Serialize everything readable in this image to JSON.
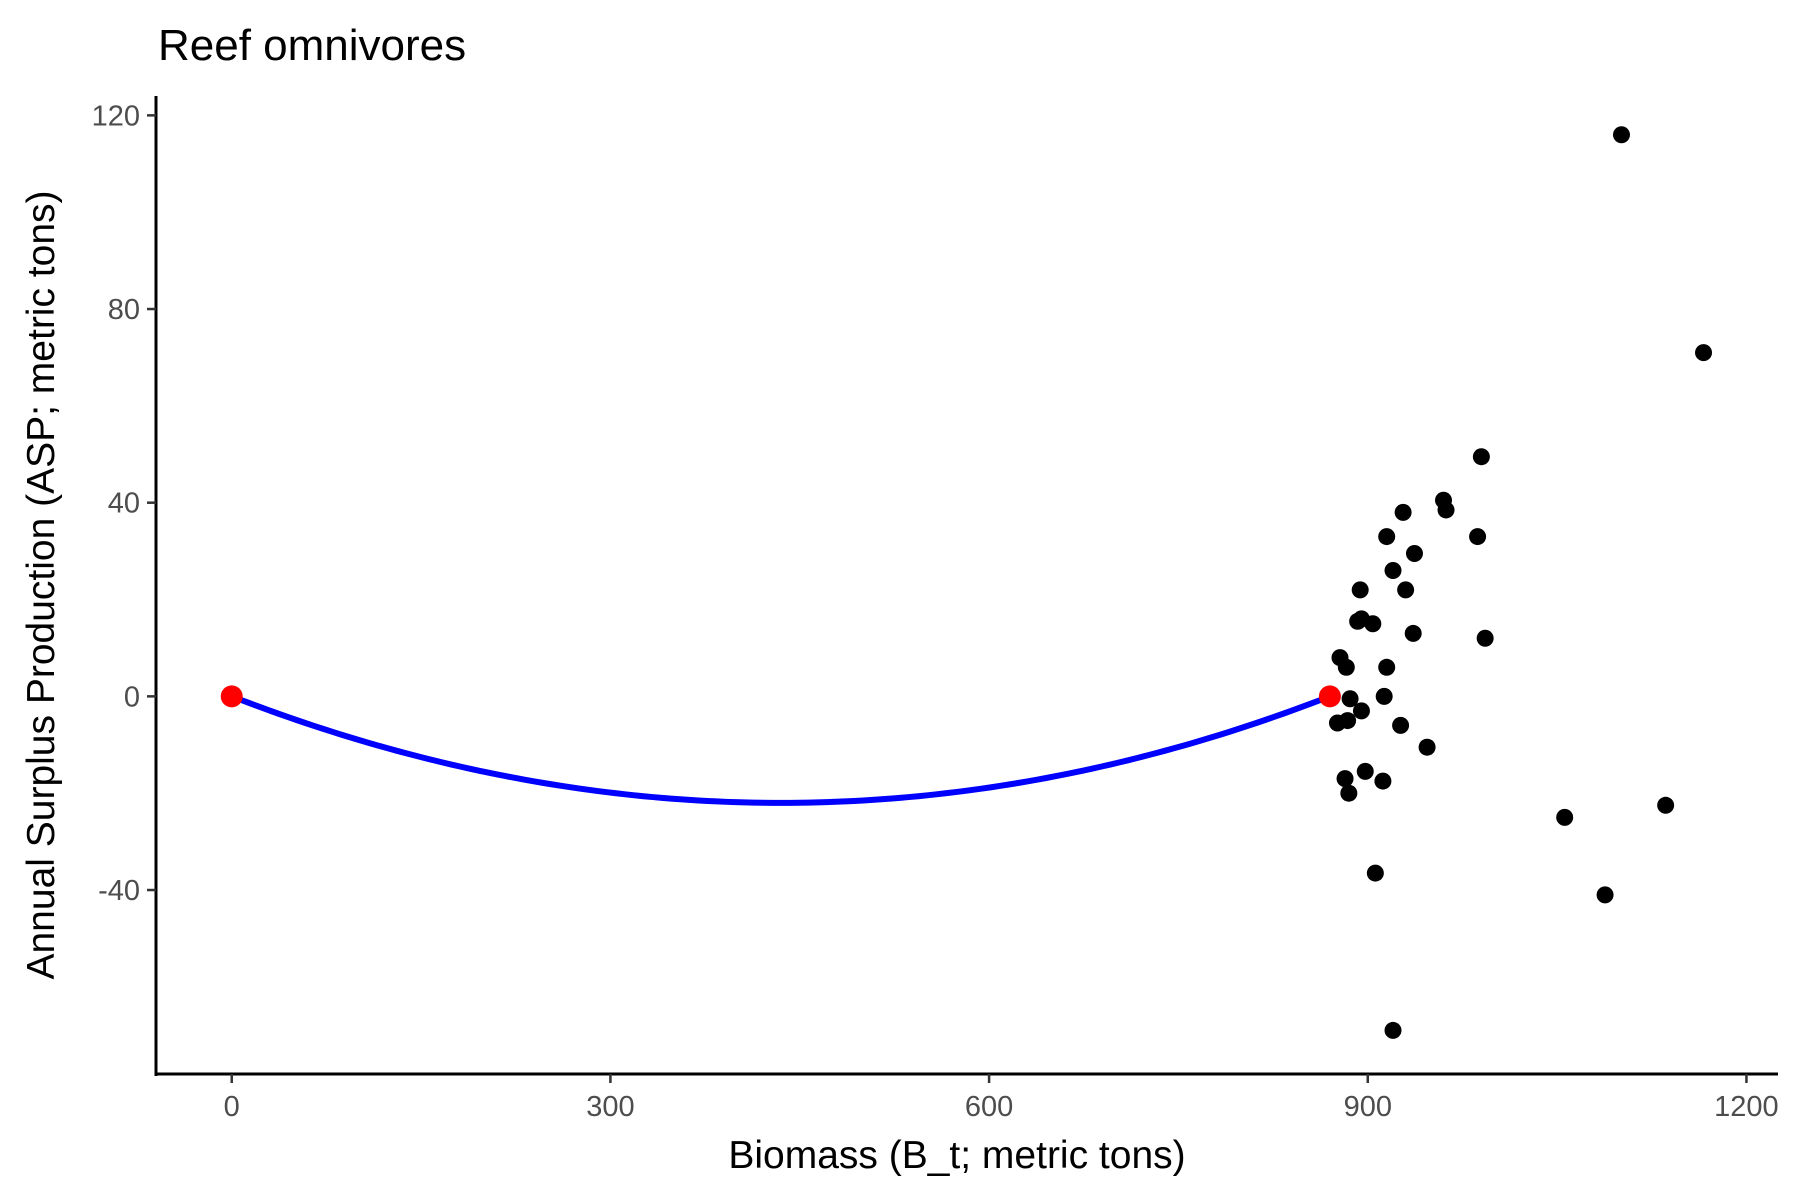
{
  "chart_data": {
    "type": "scatter",
    "title": "Reef omnivores",
    "xlabel": "Biomass (B_t; metric tons)",
    "ylabel": "Annual Surplus Production (ASP; metric tons)",
    "xlim": [
      -60,
      1225
    ],
    "ylim": [
      -78,
      124
    ],
    "x_ticks": [
      0,
      300,
      600,
      900,
      1200
    ],
    "x_tick_labels": [
      "0",
      "300",
      "600",
      "900",
      "1200"
    ],
    "y_ticks": [
      -40,
      0,
      40,
      80,
      120
    ],
    "y_tick_labels": [
      "-40",
      "0",
      "40",
      "80",
      "120"
    ],
    "grid": false,
    "legend": "none",
    "colors": {
      "points": "#000000",
      "curve": "#0000ff",
      "endpoints": "#ff0000"
    },
    "points": [
      {
        "x": 878,
        "y": 8
      },
      {
        "x": 883,
        "y": 6
      },
      {
        "x": 876,
        "y": -5.5
      },
      {
        "x": 884,
        "y": -5
      },
      {
        "x": 886,
        "y": -0.5
      },
      {
        "x": 895,
        "y": -3
      },
      {
        "x": 882,
        "y": -17
      },
      {
        "x": 885,
        "y": -20
      },
      {
        "x": 898,
        "y": -15.5
      },
      {
        "x": 892,
        "y": 15.5
      },
      {
        "x": 895,
        "y": 16
      },
      {
        "x": 904,
        "y": 15
      },
      {
        "x": 894,
        "y": 22
      },
      {
        "x": 913,
        "y": 0
      },
      {
        "x": 915,
        "y": 6
      },
      {
        "x": 912,
        "y": -17.5
      },
      {
        "x": 926,
        "y": -6
      },
      {
        "x": 906,
        "y": -36.5
      },
      {
        "x": 920,
        "y": -69
      },
      {
        "x": 915,
        "y": 33
      },
      {
        "x": 920,
        "y": 26
      },
      {
        "x": 930,
        "y": 22
      },
      {
        "x": 928,
        "y": 38
      },
      {
        "x": 937,
        "y": 29.5
      },
      {
        "x": 936,
        "y": 13
      },
      {
        "x": 947,
        "y": -10.5
      },
      {
        "x": 960,
        "y": 40.5
      },
      {
        "x": 962,
        "y": 38.5
      },
      {
        "x": 987,
        "y": 33
      },
      {
        "x": 990,
        "y": 49.5
      },
      {
        "x": 993,
        "y": 12
      },
      {
        "x": 1056,
        "y": -25
      },
      {
        "x": 1088,
        "y": -41
      },
      {
        "x": 1101,
        "y": 116
      },
      {
        "x": 1136,
        "y": -22.5
      },
      {
        "x": 1166,
        "y": 71
      }
    ],
    "curve": {
      "type": "quadratic",
      "roots": [
        0,
        870
      ],
      "min_y": -22
    },
    "endpoints": [
      {
        "x": 0,
        "y": 0
      },
      {
        "x": 870,
        "y": 0
      }
    ]
  }
}
